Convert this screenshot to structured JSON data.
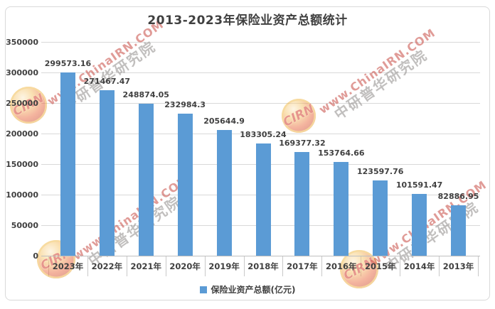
{
  "chart_data": {
    "type": "bar",
    "title": "2013-2023年保险业资产总额统计",
    "categories": [
      "2023年",
      "2022年",
      "2021年",
      "2020年",
      "2019年",
      "2018年",
      "2017年",
      "2016年",
      "2015年",
      "2014年",
      "2013年"
    ],
    "values": [
      299573.16,
      271467.47,
      248874.05,
      232984.3,
      205644.9,
      183305.24,
      169377.32,
      153764.66,
      123597.76,
      101591.47,
      82886.95
    ],
    "value_labels": [
      "299573.16",
      "271467.47",
      "248874.05",
      "232984.3",
      "205644.9",
      "183305.24",
      "169377.32",
      "153764.66",
      "123597.76",
      "101591.47",
      "82886.95"
    ],
    "xlabel": "",
    "ylabel": "",
    "ylim": [
      0,
      350000
    ],
    "ytick_step": 50000,
    "ytick_labels": [
      "0",
      "50000",
      "100000",
      "150000",
      "200000",
      "250000",
      "300000",
      "350000"
    ],
    "grid": true,
    "legend": [
      "保险业资产总额(亿元)"
    ],
    "legend_position": "bottom",
    "bar_color": "#5B9BD5"
  },
  "colors": {
    "bar": "#5B9BD5",
    "text": "#404040",
    "gridline": "#D9D9D9",
    "axis_line": "#BFBFBF",
    "frame_border": "#D9D9D9",
    "watermark_url": "#C64842",
    "watermark_cn": "#989592",
    "watermark_logo_ring": "#F0B73E",
    "watermark_logo_body": "#CF2E1E"
  },
  "watermark": {
    "url_text": "www.ChinaIRN.COM",
    "cn_text": "中研普华研究院",
    "logo_text": "CIRN"
  }
}
